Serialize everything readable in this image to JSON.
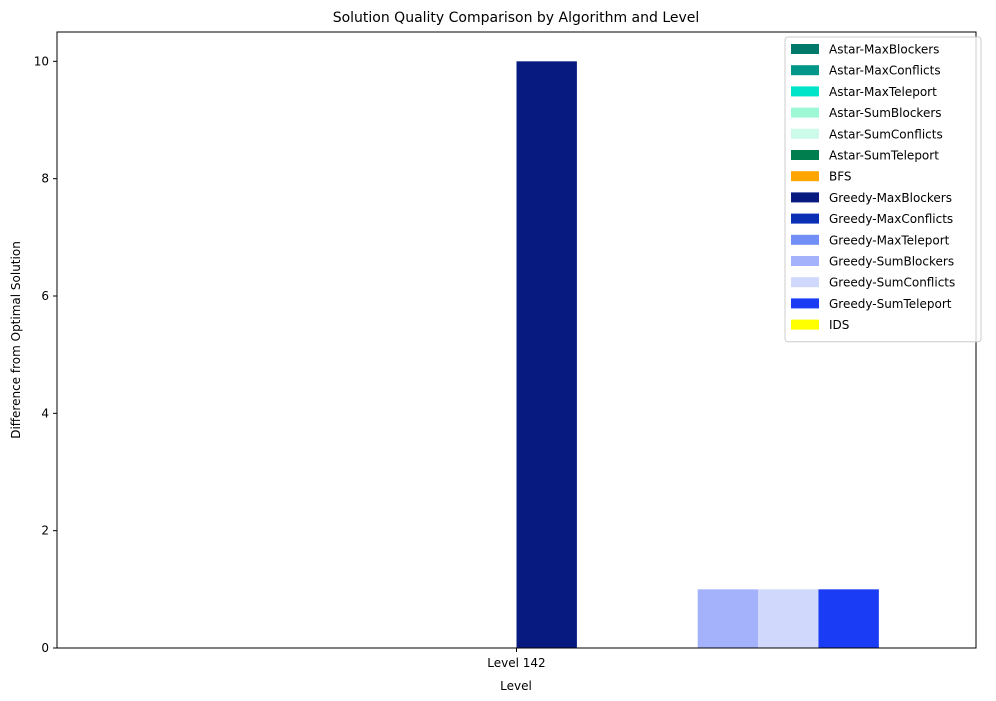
{
  "chart_data": {
    "type": "bar",
    "title": "Solution Quality Comparison by Algorithm and Level",
    "xlabel": "Level",
    "ylabel": "Difference from Optimal Solution",
    "categories": [
      "Level 142"
    ],
    "ylim": [
      0,
      10.5
    ],
    "yticks": [
      0,
      2,
      4,
      6,
      8,
      10
    ],
    "grid": false,
    "legend_position": "top-right",
    "series": [
      {
        "name": "Astar-MaxBlockers",
        "color": "#00796B",
        "values": [
          0
        ]
      },
      {
        "name": "Astar-MaxConflicts",
        "color": "#009688",
        "values": [
          0
        ]
      },
      {
        "name": "Astar-MaxTeleport",
        "color": "#00E5C9",
        "values": [
          0
        ]
      },
      {
        "name": "Astar-SumBlockers",
        "color": "#9DF8D6",
        "values": [
          0
        ]
      },
      {
        "name": "Astar-SumConflicts",
        "color": "#CCFBE9",
        "values": [
          0
        ]
      },
      {
        "name": "Astar-SumTeleport",
        "color": "#007E4E",
        "values": [
          0
        ]
      },
      {
        "name": "BFS",
        "color": "#FFA500",
        "values": [
          0
        ]
      },
      {
        "name": "Greedy-MaxBlockers",
        "color": "#061A80",
        "values": [
          10
        ]
      },
      {
        "name": "Greedy-MaxConflicts",
        "color": "#0A2FB5",
        "values": [
          0
        ]
      },
      {
        "name": "Greedy-MaxTeleport",
        "color": "#728EF7",
        "values": [
          0
        ]
      },
      {
        "name": "Greedy-SumBlockers",
        "color": "#A4B2FB",
        "values": [
          1
        ]
      },
      {
        "name": "Greedy-SumConflicts",
        "color": "#D0D8FC",
        "values": [
          1
        ]
      },
      {
        "name": "Greedy-SumTeleport",
        "color": "#1A3CF5",
        "values": [
          1
        ]
      },
      {
        "name": "IDS",
        "color": "#FFFF00",
        "values": [
          0
        ]
      }
    ]
  }
}
